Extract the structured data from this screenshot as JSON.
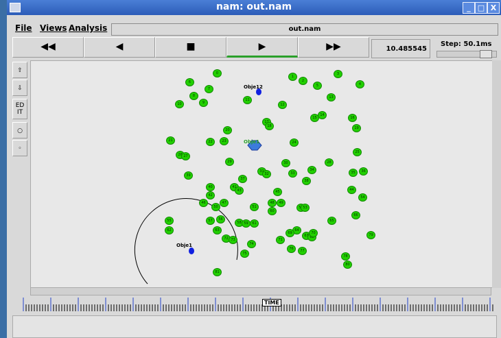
{
  "window": {
    "title": "nam: out.nam",
    "buttons": [
      "_",
      "□",
      "X"
    ]
  },
  "menu": {
    "items": [
      "File",
      "Views",
      "Analysis"
    ],
    "file_display": "out.nam"
  },
  "controls": {
    "rewind": "◀◀",
    "back": "◀",
    "stop": "■",
    "play": "▶",
    "fastforward": "▶▶",
    "time": "10.485545",
    "step_label": "Step: 50.1ms"
  },
  "tools": [
    "edit"
  ],
  "canvas": {
    "agent_labels": [
      "Obje12",
      "Obje1",
      "Obje1"
    ],
    "timeline_label": "TIME"
  },
  "nodes": [
    "0",
    "1",
    "2",
    "3",
    "4",
    "5",
    "6",
    "7",
    "8",
    "9",
    "10",
    "11",
    "12",
    "13",
    "14",
    "15",
    "16",
    "17",
    "18",
    "19",
    "20",
    "21",
    "22",
    "23",
    "24",
    "25",
    "26",
    "27",
    "28",
    "29",
    "30",
    "31",
    "32",
    "33",
    "34",
    "35",
    "36",
    "37",
    "38",
    "39",
    "40",
    "41",
    "42",
    "43",
    "44",
    "45",
    "46",
    "47",
    "48",
    "49",
    "50",
    "51",
    "52",
    "53",
    "54",
    "55",
    "56",
    "57",
    "58",
    "59",
    "60",
    "61",
    "62",
    "63",
    "64",
    "65",
    "66",
    "67",
    "68",
    "69",
    "70",
    "71",
    "72",
    "73",
    "74",
    "75",
    "76",
    "77",
    "78",
    "79",
    "80",
    "81"
  ],
  "colors": {
    "node_fill": "#22d000",
    "agent": "#0000ff",
    "titlebar": "#2c5cb8",
    "play_indicator": "#2aa02a"
  }
}
